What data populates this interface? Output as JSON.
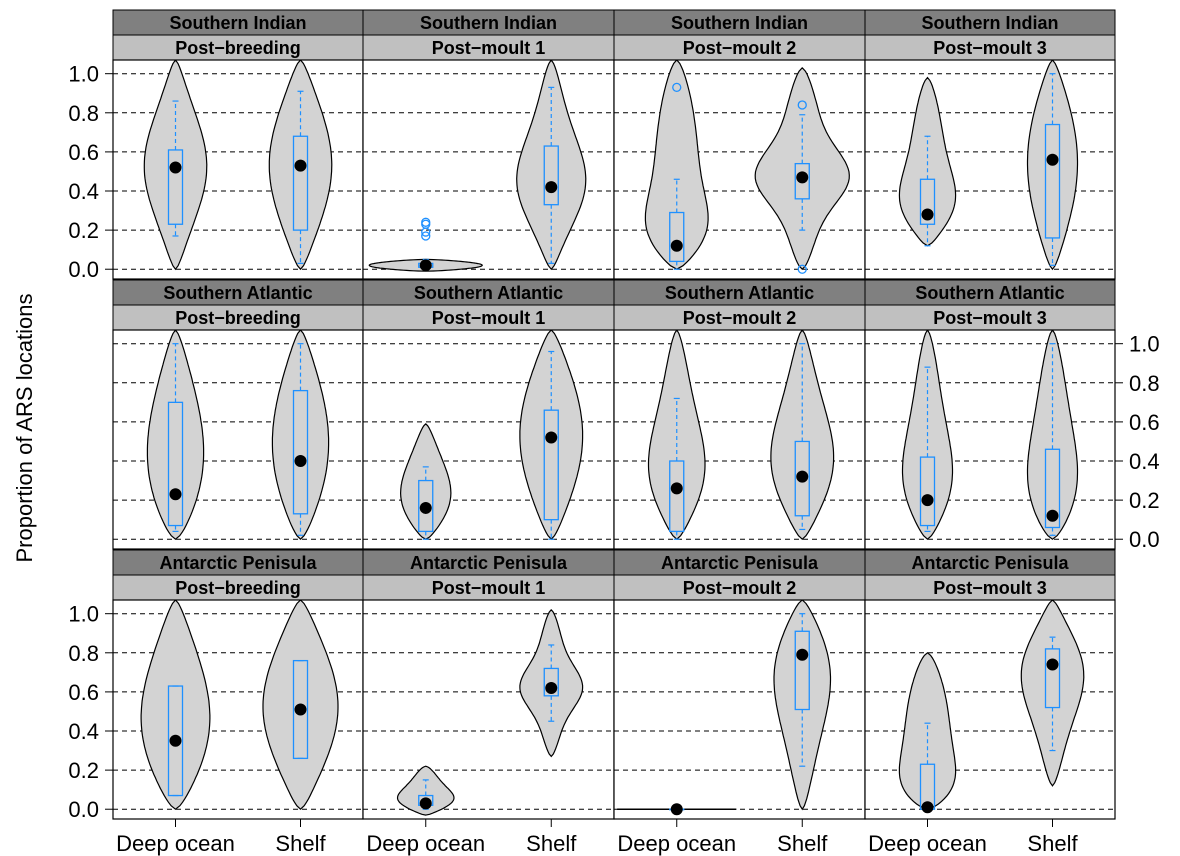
{
  "chart_data": {
    "type": "violin",
    "ylabel": "Proportion of ARS locations",
    "ylim": [
      -0.05,
      1.07
    ],
    "yticks": [
      "0.0",
      "0.2",
      "0.4",
      "0.6",
      "0.8",
      "1.0"
    ],
    "grid": "horizontal dashed at ticks",
    "categories": [
      "Deep ocean",
      "Shelf"
    ],
    "colors": {
      "violin_fill": "#d3d3d3",
      "box": "#1e90ff",
      "median_point": "#000000",
      "strip_dark": "#808080",
      "strip_light": "#c0c0c0"
    },
    "panels": [
      {
        "region": "Southern Indian",
        "stage": "Post−breeding",
        "groups": [
          {
            "name": "Deep ocean",
            "range": [
              0,
              1.07
            ],
            "q1": 0.23,
            "median": 0.52,
            "q3": 0.61,
            "whisker_low": 0.17,
            "whisker_high": 0.86,
            "outliers": [],
            "width": 0.5
          },
          {
            "name": "Shelf",
            "range": [
              0,
              1.07
            ],
            "q1": 0.2,
            "median": 0.53,
            "q3": 0.68,
            "whisker_low": 0.03,
            "whisker_high": 0.91,
            "outliers": [],
            "width": 0.5
          }
        ]
      },
      {
        "region": "Southern Indian",
        "stage": "Post−moult 1",
        "groups": [
          {
            "name": "Deep ocean",
            "range": [
              -0.01,
              0.05
            ],
            "q1": 0.01,
            "median": 0.02,
            "q3": 0.03,
            "whisker_low": 0.0,
            "whisker_high": 0.05,
            "outliers": [
              0.17,
              0.19,
              0.23,
              0.24
            ],
            "width": 0.9
          },
          {
            "name": "Shelf",
            "range": [
              0,
              1.07
            ],
            "q1": 0.33,
            "median": 0.42,
            "q3": 0.63,
            "whisker_low": 0.03,
            "whisker_high": 0.93,
            "outliers": [],
            "width": 0.55
          }
        ]
      },
      {
        "region": "Southern Indian",
        "stage": "Post−moult 2",
        "groups": [
          {
            "name": "Deep ocean",
            "range": [
              0,
              1.07
            ],
            "q1": 0.04,
            "median": 0.12,
            "q3": 0.29,
            "whisker_low": 0.0,
            "whisker_high": 0.46,
            "outliers": [
              0.93
            ],
            "width": 0.5
          },
          {
            "name": "Shelf",
            "range": [
              0,
              1.03
            ],
            "q1": 0.36,
            "median": 0.47,
            "q3": 0.54,
            "whisker_low": 0.2,
            "whisker_high": 0.79,
            "outliers": [
              0.0,
              0.84
            ],
            "width": 0.75
          }
        ]
      },
      {
        "region": "Southern Indian",
        "stage": "Post−moult 3",
        "groups": [
          {
            "name": "Deep ocean",
            "range": [
              0.12,
              0.98
            ],
            "q1": 0.23,
            "median": 0.28,
            "q3": 0.46,
            "whisker_low": 0.12,
            "whisker_high": 0.68,
            "outliers": [],
            "width": 0.45
          },
          {
            "name": "Shelf",
            "range": [
              0,
              1.07
            ],
            "q1": 0.16,
            "median": 0.56,
            "q3": 0.74,
            "whisker_low": 0.02,
            "whisker_high": 1.0,
            "outliers": [],
            "width": 0.4
          }
        ]
      },
      {
        "region": "Southern Atlantic",
        "stage": "Post−breeding",
        "groups": [
          {
            "name": "Deep ocean",
            "range": [
              0,
              1.07
            ],
            "q1": 0.07,
            "median": 0.23,
            "q3": 0.7,
            "whisker_low": 0.04,
            "whisker_high": 1.0,
            "outliers": [],
            "width": 0.45
          },
          {
            "name": "Shelf",
            "range": [
              0,
              1.07
            ],
            "q1": 0.13,
            "median": 0.4,
            "q3": 0.76,
            "whisker_low": 0.02,
            "whisker_high": 1.0,
            "outliers": [],
            "width": 0.45
          }
        ]
      },
      {
        "region": "Southern Atlantic",
        "stage": "Post−moult 1",
        "groups": [
          {
            "name": "Deep ocean",
            "range": [
              0.0,
              0.59
            ],
            "q1": 0.04,
            "median": 0.16,
            "q3": 0.3,
            "whisker_low": 0.0,
            "whisker_high": 0.37,
            "outliers": [],
            "width": 0.4
          },
          {
            "name": "Shelf",
            "range": [
              0,
              1.07
            ],
            "q1": 0.1,
            "median": 0.52,
            "q3": 0.66,
            "whisker_low": 0.0,
            "whisker_high": 0.96,
            "outliers": [],
            "width": 0.5
          }
        ]
      },
      {
        "region": "Southern Atlantic",
        "stage": "Post−moult 2",
        "groups": [
          {
            "name": "Deep ocean",
            "range": [
              0,
              1.07
            ],
            "q1": 0.04,
            "median": 0.26,
            "q3": 0.4,
            "whisker_low": 0.0,
            "whisker_high": 0.72,
            "outliers": [],
            "width": 0.45
          },
          {
            "name": "Shelf",
            "range": [
              0,
              1.07
            ],
            "q1": 0.12,
            "median": 0.32,
            "q3": 0.5,
            "whisker_low": 0.05,
            "whisker_high": 1.0,
            "outliers": [],
            "width": 0.5
          }
        ]
      },
      {
        "region": "Southern Atlantic",
        "stage": "Post−moult 3",
        "groups": [
          {
            "name": "Deep ocean",
            "range": [
              0,
              1.07
            ],
            "q1": 0.07,
            "median": 0.2,
            "q3": 0.42,
            "whisker_low": 0.04,
            "whisker_high": 0.88,
            "outliers": [],
            "width": 0.4
          },
          {
            "name": "Shelf",
            "range": [
              0,
              1.07
            ],
            "q1": 0.06,
            "median": 0.12,
            "q3": 0.46,
            "whisker_low": 0.02,
            "whisker_high": 1.0,
            "outliers": [],
            "width": 0.4
          }
        ]
      },
      {
        "region": "Antarctic Penisula",
        "stage": "Post−breeding",
        "groups": [
          {
            "name": "Deep ocean",
            "range": [
              0,
              1.07
            ],
            "q1": 0.07,
            "median": 0.35,
            "q3": 0.63,
            "whisker_low": 0.07,
            "whisker_high": 0.63,
            "outliers": [],
            "width": 0.55
          },
          {
            "name": "Shelf",
            "range": [
              0,
              1.07
            ],
            "q1": 0.26,
            "median": 0.51,
            "q3": 0.76,
            "whisker_low": 0.26,
            "whisker_high": 0.76,
            "outliers": [],
            "width": 0.6
          }
        ]
      },
      {
        "region": "Antarctic Penisula",
        "stage": "Post−moult 1",
        "groups": [
          {
            "name": "Deep ocean",
            "range": [
              -0.03,
              0.22
            ],
            "q1": 0.02,
            "median": 0.03,
            "q3": 0.07,
            "whisker_low": 0.0,
            "whisker_high": 0.15,
            "outliers": [],
            "width": 0.45
          },
          {
            "name": "Shelf",
            "range": [
              0.27,
              1.02
            ],
            "q1": 0.58,
            "median": 0.62,
            "q3": 0.72,
            "whisker_low": 0.45,
            "whisker_high": 0.84,
            "outliers": [],
            "width": 0.5
          }
        ]
      },
      {
        "region": "Antarctic Penisula",
        "stage": "Post−moult 2",
        "groups": [
          {
            "name": "Deep ocean",
            "range": [
              0.0,
              0.0
            ],
            "q1": 0.0,
            "median": 0.0,
            "q3": 0.0,
            "whisker_low": 0.0,
            "whisker_high": 0.0,
            "outliers": [],
            "width": 0.95
          },
          {
            "name": "Shelf",
            "range": [
              0,
              1.07
            ],
            "q1": 0.51,
            "median": 0.79,
            "q3": 0.91,
            "whisker_low": 0.22,
            "whisker_high": 1.0,
            "outliers": [],
            "width": 0.45
          }
        ]
      },
      {
        "region": "Antarctic Penisula",
        "stage": "Post−moult 3",
        "groups": [
          {
            "name": "Deep ocean",
            "range": [
              0,
              0.8
            ],
            "q1": 0.0,
            "median": 0.01,
            "q3": 0.23,
            "whisker_low": 0.0,
            "whisker_high": 0.44,
            "outliers": [],
            "width": 0.45
          },
          {
            "name": "Shelf",
            "range": [
              0.12,
              1.07
            ],
            "q1": 0.52,
            "median": 0.74,
            "q3": 0.82,
            "whisker_low": 0.3,
            "whisker_high": 0.88,
            "outliers": [],
            "width": 0.5
          }
        ]
      }
    ]
  }
}
